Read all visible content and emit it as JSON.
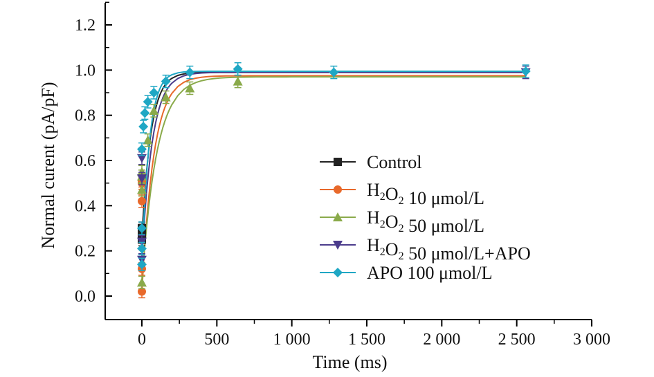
{
  "chart_data": {
    "type": "line",
    "xlabel": "Time (ms)",
    "ylabel": "Normal curent (pA/pF)",
    "xlim": [
      -250,
      3000
    ],
    "ylim": [
      -0.1,
      1.3
    ],
    "x_ticks": [
      0,
      500,
      1000,
      1500,
      2000,
      2500,
      3000
    ],
    "x_tick_labels": [
      "0",
      "500",
      "1 000",
      "1 500",
      "2 000",
      "2 500",
      "3 000"
    ],
    "y_ticks": [
      0.0,
      0.2,
      0.4,
      0.6,
      0.8,
      1.0,
      1.2
    ],
    "y_tick_labels": [
      "0.0",
      "0.2",
      "0.4",
      "0.6",
      "0.8",
      "1.0",
      "1.2"
    ],
    "legend_position": "center-right",
    "series": [
      {
        "name": "Control",
        "legend_parts": [
          {
            "t": "Control"
          }
        ],
        "color": "#222222",
        "marker": "square",
        "x": [
          0,
          0,
          0,
          0,
          0
        ],
        "y": [
          0.27,
          0.29,
          0.28,
          0.25,
          0.3
        ],
        "fit_plateau": 0.99,
        "fit_tau": 60
      },
      {
        "name": "H2O2 10 μmol/L",
        "legend_parts": [
          {
            "t": "H"
          },
          {
            "t": "2",
            "sub": true
          },
          {
            "t": "O"
          },
          {
            "t": "2",
            "sub": true
          },
          {
            "t": " 10 μmol/L"
          }
        ],
        "color": "#e8692b",
        "marker": "circle",
        "x": [
          0,
          0,
          0,
          0,
          0
        ],
        "y": [
          0.02,
          0.12,
          0.42,
          0.51,
          0.5
        ],
        "fit_plateau": 0.975,
        "fit_tau": 80
      },
      {
        "name": "H2O2 50 μmol/L",
        "legend_parts": [
          {
            "t": "H"
          },
          {
            "t": "2",
            "sub": true
          },
          {
            "t": "O"
          },
          {
            "t": "2",
            "sub": true
          },
          {
            "t": " 50 μmol/L"
          }
        ],
        "color": "#8aaa4a",
        "marker": "triangle-up",
        "x": [
          0,
          0,
          0,
          0,
          40,
          80,
          160,
          320,
          640
        ],
        "y": [
          0.06,
          0.47,
          0.53,
          0.55,
          0.69,
          0.82,
          0.88,
          0.92,
          0.95
        ],
        "fit_plateau": 0.97,
        "fit_tau": 100
      },
      {
        "name": "H2O2 50 μmol/L+APO",
        "legend_parts": [
          {
            "t": "H"
          },
          {
            "t": "2",
            "sub": true
          },
          {
            "t": "O"
          },
          {
            "t": "2",
            "sub": true
          },
          {
            "t": " 50 μmol/L+APO"
          }
        ],
        "color": "#4b3c8c",
        "marker": "triangle-down",
        "x": [
          0,
          0,
          0,
          0,
          2560
        ],
        "y": [
          0.16,
          0.24,
          0.52,
          0.61,
          0.99
        ],
        "fit_plateau": 0.99,
        "fit_tau": 70
      },
      {
        "name": "APO 100 μmol/L",
        "legend_parts": [
          {
            "t": "APO 100 μmol/L"
          }
        ],
        "color": "#1fa7c4",
        "marker": "diamond",
        "x": [
          0,
          0,
          0,
          0,
          10,
          20,
          40,
          80,
          160,
          320,
          640,
          1280,
          2560
        ],
        "y": [
          0.14,
          0.21,
          0.3,
          0.65,
          0.75,
          0.81,
          0.86,
          0.9,
          0.95,
          0.99,
          1.005,
          0.99,
          0.995
        ],
        "fit_plateau": 0.995,
        "fit_tau": 50
      }
    ]
  }
}
